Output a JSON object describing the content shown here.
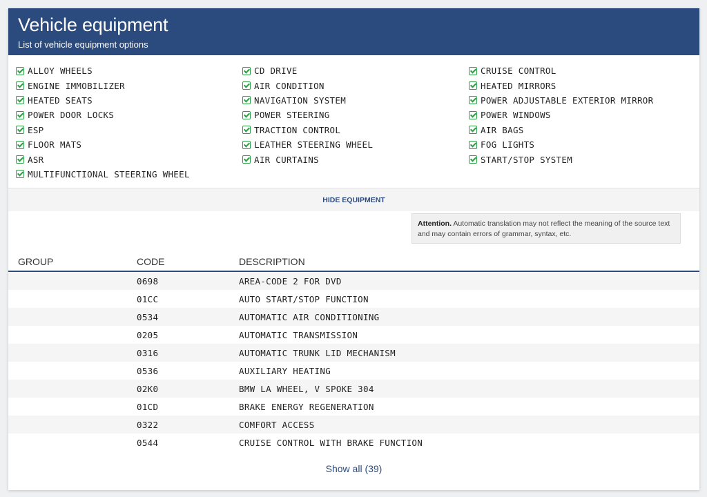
{
  "header": {
    "title": "Vehicle equipment",
    "subtitle": "List of vehicle equipment options"
  },
  "equipment": {
    "columns": [
      [
        "ALLOY WHEELS",
        "ENGINE IMMOBILIZER",
        "HEATED SEATS",
        "POWER DOOR LOCKS",
        "ESP",
        "FLOOR MATS",
        "ASR",
        "MULTIFUNCTIONAL STEERING WHEEL"
      ],
      [
        "CD DRIVE",
        "AIR CONDITION",
        "NAVIGATION SYSTEM",
        "POWER STEERING",
        "TRACTION CONTROL",
        "LEATHER STEERING WHEEL",
        "AIR CURTAINS"
      ],
      [
        "CRUISE CONTROL",
        "HEATED MIRRORS",
        "POWER ADJUSTABLE EXTERIOR MIRROR",
        "POWER WINDOWS",
        "AIR BAGS",
        "FOG LIGHTS",
        "START/STOP SYSTEM"
      ]
    ],
    "check_icon": "check-square-icon",
    "check_color": "#2e9e45"
  },
  "hide_equipment_label": "HIDE EQUIPMENT",
  "notice": {
    "bold": "Attention.",
    "text": " Automatic translation may not reflect the meaning of the source text and may contain errors of grammar, syntax, etc."
  },
  "table": {
    "headers": {
      "group": "GROUP",
      "code": "CODE",
      "description": "DESCRIPTION"
    },
    "rows": [
      {
        "group": "",
        "code": "0698",
        "description": "AREA-CODE 2 FOR DVD"
      },
      {
        "group": "",
        "code": "01CC",
        "description": "AUTO START/STOP FUNCTION"
      },
      {
        "group": "",
        "code": "0534",
        "description": "AUTOMATIC AIR CONDITIONING"
      },
      {
        "group": "",
        "code": "0205",
        "description": "AUTOMATIC TRANSMISSION"
      },
      {
        "group": "",
        "code": "0316",
        "description": "AUTOMATIC TRUNK LID MECHANISM"
      },
      {
        "group": "",
        "code": "0536",
        "description": "AUXILIARY HEATING"
      },
      {
        "group": "",
        "code": "02K0",
        "description": "BMW LA WHEEL, V SPOKE 304"
      },
      {
        "group": "",
        "code": "01CD",
        "description": "BRAKE ENERGY REGENERATION"
      },
      {
        "group": "",
        "code": "0322",
        "description": "COMFORT ACCESS"
      },
      {
        "group": "",
        "code": "0544",
        "description": "CRUISE CONTROL WITH BRAKE FUNCTION"
      }
    ]
  },
  "show_all_label": "Show all (39)",
  "colors": {
    "header_bg": "#2b4a7e",
    "accent": "#2b4a7e"
  }
}
